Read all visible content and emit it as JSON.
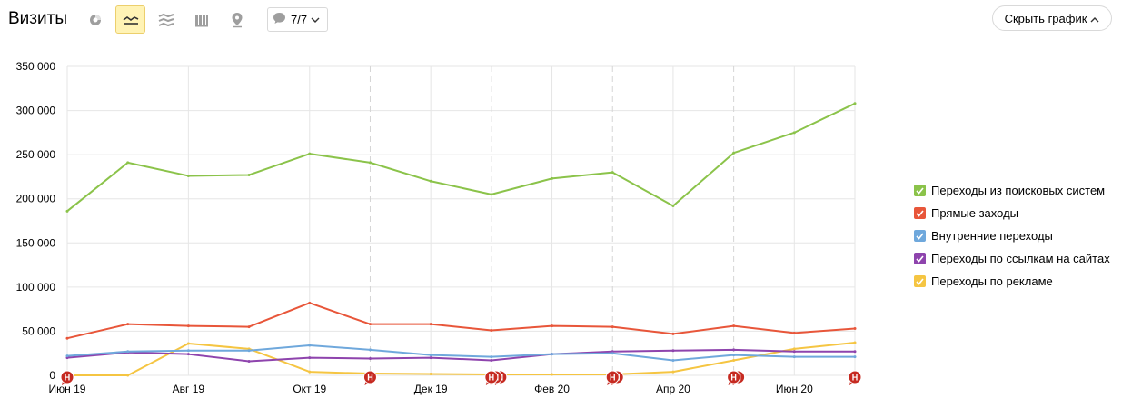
{
  "header": {
    "title": "Визиты",
    "segments_label": "7/7",
    "hide_chart_label": "Скрыть график"
  },
  "chart_data": {
    "type": "line",
    "x_labels": [
      "Июн 19",
      "",
      "Авг 19",
      "",
      "Окт 19",
      "",
      "Дек 19",
      "",
      "Фев 20",
      "",
      "Апр 20",
      "",
      "Июн 20",
      ""
    ],
    "tick_labels": [
      "Июн 19",
      "Авг 19",
      "Окт 19",
      "Дек 19",
      "Фев 20",
      "Апр 20",
      "Июн 20"
    ],
    "ylim": [
      0,
      350000
    ],
    "y_ticks": [
      {
        "value": 0,
        "label": "0"
      },
      {
        "value": 50000,
        "label": "50 000"
      },
      {
        "value": 100000,
        "label": "100 000"
      },
      {
        "value": 150000,
        "label": "150 000"
      },
      {
        "value": 200000,
        "label": "200 000"
      },
      {
        "value": 250000,
        "label": "250 000"
      },
      {
        "value": 300000,
        "label": "300 000"
      },
      {
        "value": 350000,
        "label": "350 000"
      }
    ],
    "series": [
      {
        "name": "Переходы из поисковых систем",
        "color": "#8bc34a",
        "values": [
          186000,
          241000,
          226000,
          227000,
          251000,
          241000,
          220000,
          205000,
          223000,
          230000,
          192000,
          252000,
          275000,
          308000
        ]
      },
      {
        "name": "Прямые заходы",
        "color": "#e8563a",
        "values": [
          42000,
          58000,
          56000,
          55000,
          82000,
          58000,
          58000,
          51000,
          56000,
          55000,
          47000,
          56000,
          48000,
          53000
        ]
      },
      {
        "name": "Внутренние переходы",
        "color": "#6fa8dc",
        "values": [
          22000,
          27000,
          28000,
          28000,
          34000,
          29000,
          23000,
          21000,
          24000,
          25000,
          17000,
          23000,
          21000,
          21000
        ]
      },
      {
        "name": "Переходы по ссылкам на сайтах",
        "color": "#8e44ad",
        "values": [
          20000,
          26000,
          24000,
          16000,
          20000,
          19000,
          20000,
          17000,
          24000,
          27000,
          28000,
          29000,
          27000,
          27000
        ]
      },
      {
        "name": "Переходы по рекламе",
        "color": "#f5c542",
        "values": [
          0,
          0,
          36000,
          30000,
          4000,
          2000,
          1500,
          1000,
          1000,
          1000,
          4000,
          17000,
          30000,
          37000
        ]
      }
    ],
    "annotations": {
      "marker_letter": "Н",
      "markers": [
        0,
        5,
        7,
        9,
        11,
        13
      ],
      "marker_count": [
        1,
        1,
        3,
        2,
        2,
        1
      ],
      "dashed_lines": [
        5,
        7,
        9,
        11
      ]
    },
    "grid": true,
    "legend": "right"
  }
}
